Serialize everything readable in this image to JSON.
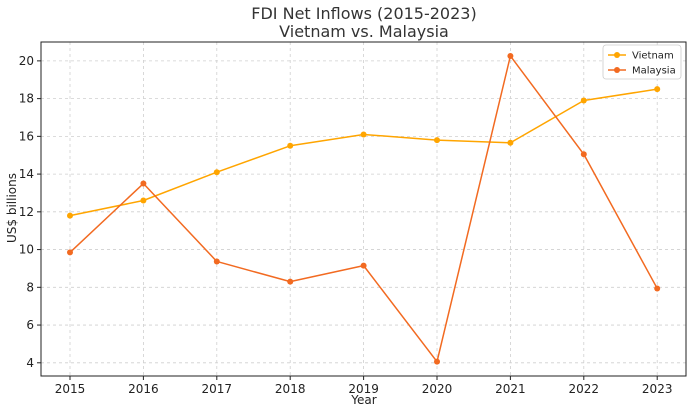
{
  "chart_data": {
    "type": "line",
    "title": "FDI Net Inflows (2015-2023)",
    "subtitle": "Vietnam vs. Malaysia",
    "xlabel": "Year",
    "ylabel": "US$ billions",
    "categories": [
      "2015",
      "2016",
      "2017",
      "2018",
      "2019",
      "2020",
      "2021",
      "2022",
      "2023"
    ],
    "ylim": [
      3.3,
      21.0
    ],
    "yticks": [
      "4",
      "6",
      "8",
      "10",
      "12",
      "14",
      "16",
      "18",
      "20"
    ],
    "grid": true,
    "legend_position": "top-right",
    "series": [
      {
        "name": "Vietnam",
        "color": "#FFA500",
        "values": [
          11.8,
          12.6,
          14.1,
          15.5,
          16.1,
          15.8,
          15.66,
          17.9,
          18.5
        ]
      },
      {
        "name": "Malaysia",
        "color": "#F26A21",
        "values": [
          9.85,
          13.5,
          9.37,
          8.3,
          9.15,
          4.06,
          20.26,
          15.05,
          7.94
        ]
      }
    ]
  }
}
